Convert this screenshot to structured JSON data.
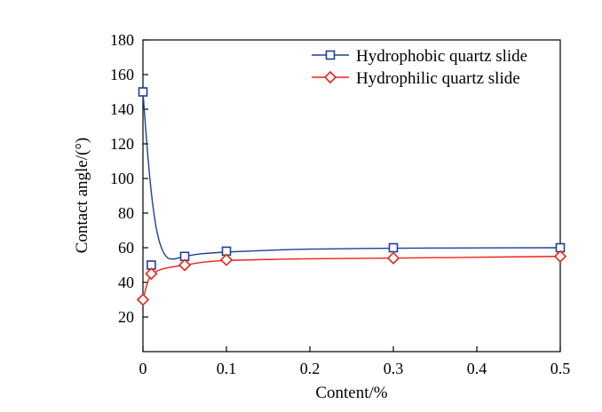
{
  "chart_data": {
    "type": "line",
    "title": "",
    "xlabel": "Content/%",
    "ylabel": "Contact angle/(°)",
    "xlim": [
      0,
      0.5
    ],
    "ylim": [
      0,
      180
    ],
    "xticks": [
      {
        "value": 0,
        "label": "0"
      },
      {
        "value": 0.1,
        "label": "0.1"
      },
      {
        "value": 0.2,
        "label": "0.2"
      },
      {
        "value": 0.3,
        "label": "0.3"
      },
      {
        "value": 0.4,
        "label": "0.4"
      },
      {
        "value": 0.5,
        "label": "0.5"
      }
    ],
    "yticks": [
      {
        "value": 20,
        "label": "20"
      },
      {
        "value": 40,
        "label": "40"
      },
      {
        "value": 60,
        "label": "60"
      },
      {
        "value": 80,
        "label": "80"
      },
      {
        "value": 100,
        "label": "100"
      },
      {
        "value": 120,
        "label": "120"
      },
      {
        "value": 140,
        "label": "140"
      },
      {
        "value": 160,
        "label": "160"
      },
      {
        "value": 180,
        "label": "180"
      }
    ],
    "grid": false,
    "legend_position": "top-right",
    "series": [
      {
        "name": "Hydrophobic quartz slide",
        "color": "#1f3f99",
        "marker": "square",
        "points": [
          [
            0,
            150
          ],
          [
            0.01,
            50
          ],
          [
            0.05,
            55
          ],
          [
            0.1,
            58
          ],
          [
            0.3,
            60
          ],
          [
            0.5,
            60
          ]
        ],
        "curve": [
          [
            0,
            150
          ],
          [
            0.005,
            118
          ],
          [
            0.01,
            92
          ],
          [
            0.015,
            74
          ],
          [
            0.02,
            63
          ],
          [
            0.025,
            57
          ],
          [
            0.03,
            54
          ],
          [
            0.035,
            53.5
          ],
          [
            0.04,
            53.7
          ],
          [
            0.05,
            55
          ],
          [
            0.07,
            56.5
          ],
          [
            0.1,
            57.5
          ],
          [
            0.15,
            58.5
          ],
          [
            0.2,
            59.2
          ],
          [
            0.3,
            59.7
          ],
          [
            0.4,
            59.9
          ],
          [
            0.5,
            60
          ]
        ]
      },
      {
        "name": "Hydrophilic quartz slide",
        "color": "#e8251b",
        "marker": "diamond",
        "points": [
          [
            0,
            30
          ],
          [
            0.01,
            45
          ],
          [
            0.05,
            50
          ],
          [
            0.1,
            53
          ],
          [
            0.3,
            54
          ],
          [
            0.5,
            55
          ]
        ],
        "curve": [
          [
            0,
            30
          ],
          [
            0.005,
            39
          ],
          [
            0.01,
            44.5
          ],
          [
            0.02,
            47.2
          ],
          [
            0.03,
            48.5
          ],
          [
            0.05,
            50
          ],
          [
            0.075,
            51.8
          ],
          [
            0.1,
            52.6
          ],
          [
            0.15,
            53.2
          ],
          [
            0.2,
            53.6
          ],
          [
            0.3,
            54
          ],
          [
            0.4,
            54.5
          ],
          [
            0.5,
            55
          ]
        ]
      }
    ]
  }
}
